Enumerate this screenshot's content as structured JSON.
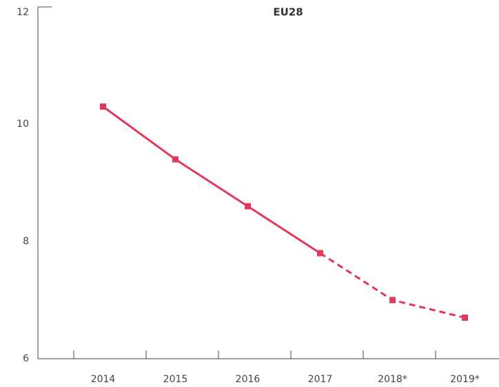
{
  "chart_data": {
    "type": "line",
    "title": "EU28",
    "categories": [
      "2014",
      "2015",
      "2016",
      "2017",
      "2018*",
      "2019*"
    ],
    "values": [
      10.3,
      9.4,
      8.6,
      7.8,
      7.0,
      6.7
    ],
    "color": "#e5375b",
    "dashed_from": 3,
    "ylim": [
      6,
      12
    ],
    "yticks": [
      6,
      8,
      10,
      12
    ],
    "grid": false
  }
}
